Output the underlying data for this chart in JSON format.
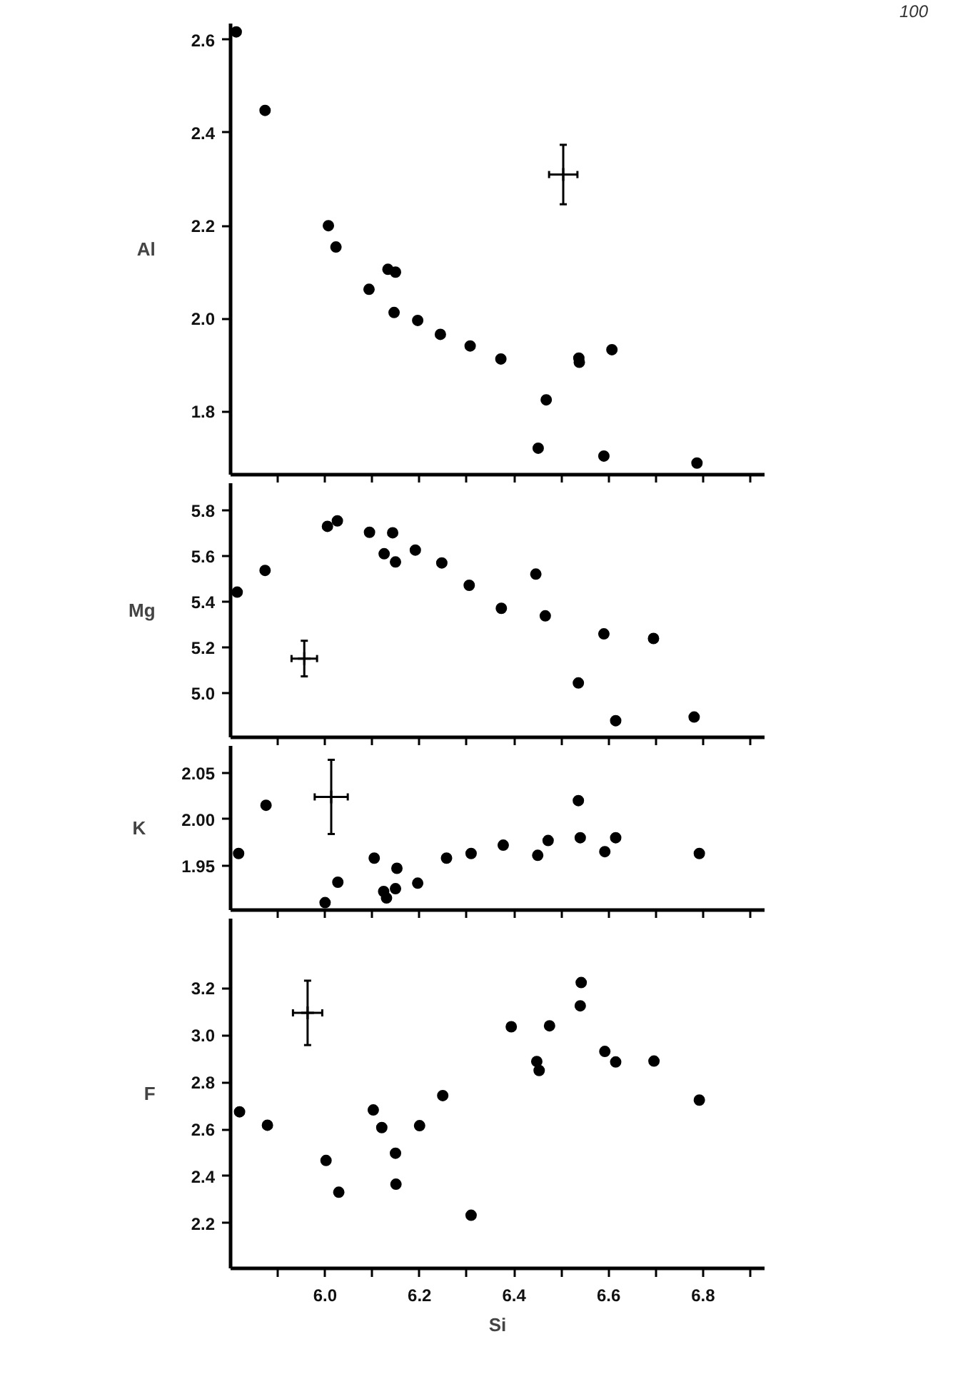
{
  "chart_data": [
    {
      "type": "scatter",
      "ylabel": "Al",
      "annotations": [
        "100"
      ],
      "xlim": [
        5.8,
        6.93
      ],
      "ylim": [
        1.664,
        2.635
      ],
      "tick_labels": "y",
      "grid": false,
      "xticks": [
        5.9,
        6.0,
        6.1,
        6.2,
        6.3,
        6.4,
        6.5,
        6.6,
        6.7,
        6.8,
        6.9
      ],
      "yticks": [
        1.8,
        {
          "value": 2.0,
          "label": "2.0"
        },
        2.2,
        2.4,
        2.6
      ],
      "series": [
        {
          "marker": "circle",
          "color": "#000000",
          "x": [
            5.812,
            5.873,
            6.007,
            6.023,
            6.093,
            6.133,
            6.149,
            6.146,
            6.196,
            6.244,
            6.307,
            6.372,
            6.451,
            6.468,
            6.537,
            6.538,
            6.607,
            6.59,
            6.787
          ],
          "values": [
            2.617,
            2.448,
            2.2,
            2.154,
            2.063,
            2.106,
            2.1,
            2.013,
            1.996,
            1.966,
            1.941,
            1.913,
            1.721,
            1.825,
            1.915,
            1.906,
            1.933,
            1.704,
            1.689
          ]
        },
        {
          "marker": "cross",
          "color": "#000000",
          "x": [
            6.504
          ],
          "values": [
            2.31
          ],
          "errors": [
            0.064
          ],
          "xerrors": [
            0.03
          ]
        }
      ]
    },
    {
      "type": "scatter",
      "ylabel": "Mg",
      "xlim": [
        5.8,
        6.93
      ],
      "ylim": [
        4.807,
        5.92
      ],
      "tick_labels": "y",
      "grid": false,
      "xticks": [
        5.9,
        6.0,
        6.1,
        6.2,
        6.3,
        6.4,
        6.5,
        6.6,
        6.7,
        6.8,
        6.9
      ],
      "yticks": [
        {
          "value": 5.0,
          "label": "5.0"
        },
        5.2,
        5.4,
        5.6,
        5.8
      ],
      "series": [
        {
          "marker": "circle",
          "color": "#000000",
          "x": [
            5.814,
            5.873,
            6.005,
            6.026,
            6.094,
            6.125,
            6.143,
            6.149,
            6.191,
            6.247,
            6.305,
            6.373,
            6.446,
            6.466,
            6.536,
            6.59,
            6.615,
            6.695,
            6.781
          ],
          "values": [
            5.443,
            5.538,
            5.731,
            5.755,
            5.705,
            5.611,
            5.703,
            5.575,
            5.627,
            5.571,
            5.473,
            5.372,
            5.522,
            5.339,
            5.045,
            5.26,
            4.88,
            5.24,
            4.896
          ]
        },
        {
          "marker": "cross",
          "color": "#000000",
          "x": [
            5.956
          ],
          "values": [
            5.152
          ],
          "errors": [
            0.078
          ],
          "xerrors": [
            0.027
          ]
        }
      ]
    },
    {
      "type": "scatter",
      "ylabel": "K",
      "xlim": [
        5.8,
        6.93
      ],
      "ylim": [
        1.902,
        2.079
      ],
      "tick_labels": "y",
      "grid": false,
      "xticks": [
        5.9,
        6.0,
        6.1,
        6.2,
        6.3,
        6.4,
        6.5,
        6.6,
        6.7,
        6.8,
        6.9
      ],
      "yticks": [
        {
          "value": 1.95,
          "label": "1.95"
        },
        {
          "value": 2.0,
          "label": "2.00"
        },
        {
          "value": 2.05,
          "label": "2.05"
        }
      ],
      "series": [
        {
          "marker": "circle",
          "color": "#000000",
          "x": [
            5.817,
            5.875,
            6.0,
            6.027,
            6.104,
            6.124,
            6.13,
            6.149,
            6.152,
            6.196,
            6.257,
            6.309,
            6.377,
            6.45,
            6.472,
            6.536,
            6.54,
            6.592,
            6.615,
            6.792
          ],
          "values": [
            1.963,
            2.015,
            1.91,
            1.932,
            1.958,
            1.922,
            1.915,
            1.925,
            1.947,
            1.931,
            1.958,
            1.963,
            1.972,
            1.961,
            1.977,
            2.02,
            1.98,
            1.965,
            1.98,
            1.963
          ]
        },
        {
          "marker": "cross",
          "color": "#000000",
          "x": [
            6.013
          ],
          "values": [
            2.024
          ],
          "errors": [
            0.04
          ],
          "xerrors": [
            0.035
          ]
        }
      ]
    },
    {
      "type": "scatter",
      "ylabel": "F",
      "xlabel": "Si",
      "xlim": [
        5.8,
        6.93
      ],
      "ylim": [
        2.008,
        3.496
      ],
      "grid": false,
      "xticks": [
        {
          "value": 5.9,
          "label": null
        },
        {
          "value": 6.0,
          "label": "6.0"
        },
        {
          "value": 6.1,
          "label": null
        },
        {
          "value": 6.2,
          "label": "6.2"
        },
        {
          "value": 6.3,
          "label": null
        },
        {
          "value": 6.4,
          "label": "6.4"
        },
        {
          "value": 6.5,
          "label": null
        },
        {
          "value": 6.6,
          "label": "6.6"
        },
        {
          "value": 6.7,
          "label": null
        },
        {
          "value": 6.8,
          "label": "6.8"
        },
        {
          "value": 6.9,
          "label": null
        }
      ],
      "yticks": [
        2.2,
        2.4,
        2.6,
        2.8,
        {
          "value": 3.0,
          "label": "3.0"
        },
        3.2
      ],
      "series": [
        {
          "marker": "circle",
          "color": "#000000",
          "x": [
            5.819,
            5.878,
            6.002,
            6.029,
            6.102,
            6.12,
            6.149,
            6.15,
            6.2,
            6.249,
            6.309,
            6.394,
            6.448,
            6.453,
            6.475,
            6.54,
            6.542,
            6.592,
            6.615,
            6.696,
            6.792
          ],
          "values": [
            2.674,
            2.617,
            2.467,
            2.332,
            2.682,
            2.607,
            2.498,
            2.366,
            2.615,
            2.743,
            2.234,
            3.036,
            2.888,
            2.85,
            3.04,
            3.125,
            3.224,
            2.931,
            2.886,
            2.89,
            2.724
          ]
        },
        {
          "marker": "cross",
          "color": "#000000",
          "x": [
            5.963
          ],
          "values": [
            3.095
          ],
          "errors": [
            0.137
          ],
          "xerrors": [
            0.031
          ]
        }
      ]
    }
  ]
}
